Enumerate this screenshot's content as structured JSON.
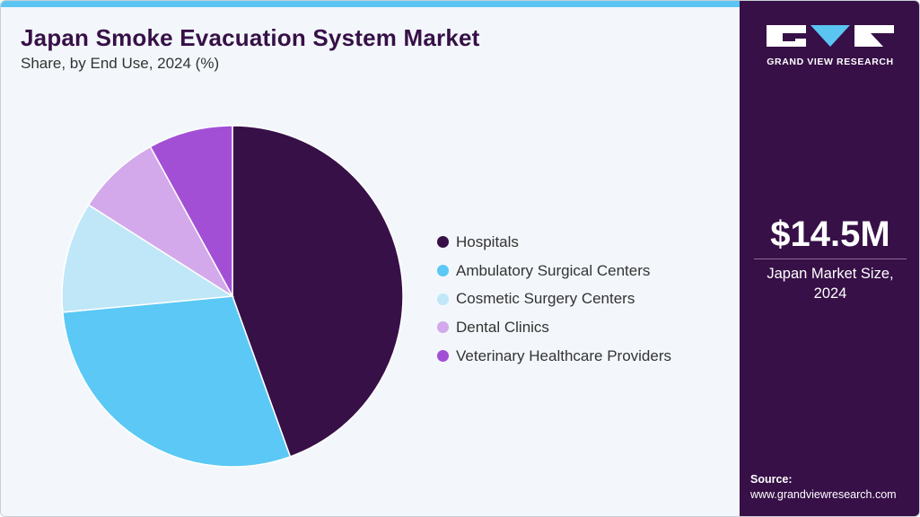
{
  "header": {
    "title": "Japan Smoke Evacuation System Market",
    "subtitle": "Share, by End Use, 2024 (%)"
  },
  "chart_data": {
    "type": "pie",
    "title": "Japan Smoke Evacuation System Market",
    "subtitle": "Share, by End Use, 2024 (%)",
    "categories": [
      "Hospitals",
      "Ambulatory Surgical Centers",
      "Cosmetic Surgery Centers",
      "Dental Clinics",
      "Veterinary Healthcare Providers"
    ],
    "values": [
      44.5,
      29.0,
      10.5,
      8.0,
      8.0
    ],
    "colors": [
      "#371047",
      "#5bc8f5",
      "#bfe7f8",
      "#d3a9eb",
      "#a24fd6"
    ],
    "legend_position": "right"
  },
  "sidebar": {
    "brand": "GRAND VIEW RESEARCH",
    "market_value": "$14.5M",
    "market_label_line1": "Japan Market Size,",
    "market_label_line2": "2024",
    "source_label": "Source:",
    "source_url": "www.grandviewresearch.com"
  },
  "theme": {
    "accent": "#5bc5f2",
    "brand_dark": "#371047",
    "background": "#f3f7fb"
  }
}
